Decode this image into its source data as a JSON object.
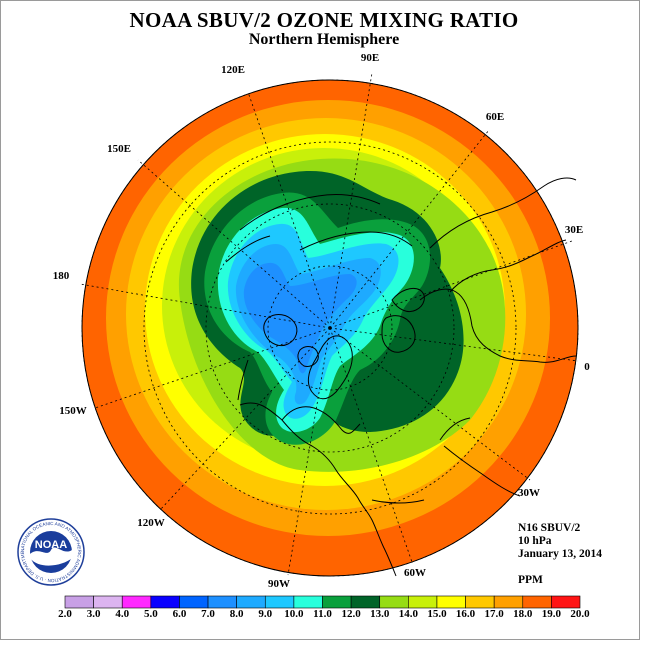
{
  "title": "NOAA SBUV/2 OZONE MIXING RATIO",
  "subtitle": "Northern Hemisphere",
  "info": {
    "satellite": "N16 SBUV/2",
    "level": "10 hPa",
    "date": "January 13, 2014",
    "units": "PPM"
  },
  "longitude_labels": [
    "90E",
    "60E",
    "30E",
    "0",
    "30W",
    "60W",
    "90W",
    "120W",
    "150W",
    "180",
    "150E",
    "120E"
  ],
  "logo": {
    "center_text": "NOAA",
    "ring_text": "NATIONAL OCEANIC AND ATMOSPHERIC ADMINISTRATION · U.S. DEPARTMENT OF COMMERCE"
  },
  "colorbar": {
    "ticks": [
      "2.0",
      "3.0",
      "4.0",
      "5.0",
      "6.0",
      "7.0",
      "8.0",
      "9.0",
      "10.0",
      "11.0",
      "12.0",
      "13.0",
      "14.0",
      "15.0",
      "16.0",
      "17.0",
      "18.0",
      "19.0",
      "20.0"
    ],
    "colors": [
      "#c8a0e6",
      "#dcb4f0",
      "#ff28ff",
      "#0a00ff",
      "#0064ff",
      "#1e90ff",
      "#1eaaff",
      "#1ec8ff",
      "#28ffdc",
      "#0aa03c",
      "#006428",
      "#96dc14",
      "#c8f00a",
      "#ffff00",
      "#ffc800",
      "#ffa000",
      "#ff6400",
      "#ff1414",
      "#8c5a3c"
    ]
  },
  "map_data": {
    "projection": "north polar stereographic",
    "variable": "ozone mixing ratio (ppm)",
    "pressure_level_hpa": 10,
    "rings_ppm": [
      17.5,
      16.5,
      15.5,
      14.5,
      13.5,
      12.5,
      11.5,
      10.5,
      9.5,
      8.5,
      7.5
    ],
    "notes": "Low ozone core near pole extending toward North America; green high-gradient lobe over Eurasia/Atlantic"
  }
}
